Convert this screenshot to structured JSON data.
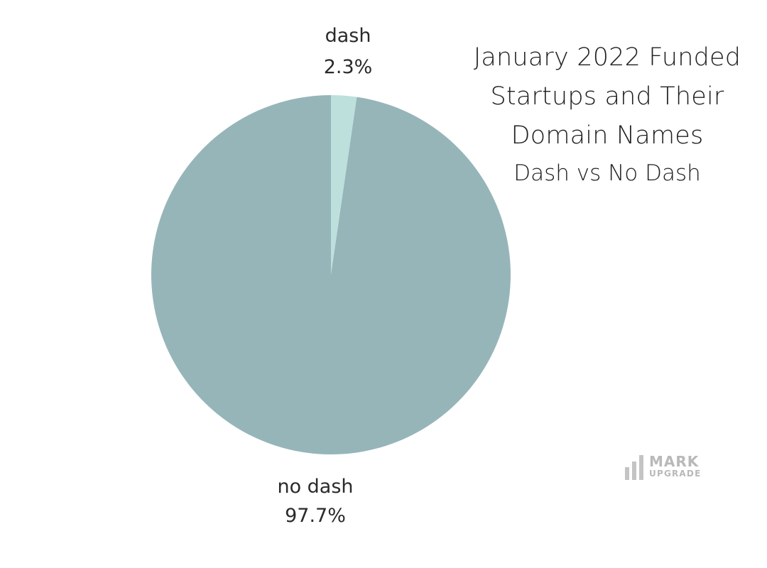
{
  "chart_data": {
    "type": "pie",
    "title_lines": [
      "January 2022 Funded",
      "Startups and Their",
      "Domain Names"
    ],
    "subtitle": "Dash vs No Dash",
    "slices": [
      {
        "name": "dash",
        "value": 2.3,
        "label": "2.3%",
        "color": "#bde0dd"
      },
      {
        "name": "no dash",
        "value": 97.7,
        "label": "97.7%",
        "color": "#96b5b9"
      }
    ],
    "start_angle": "12 o'clock",
    "direction": "clockwise"
  },
  "logo": {
    "line1": "MARK",
    "line2": "UPGRADE",
    "color": "#b9b9b9"
  }
}
